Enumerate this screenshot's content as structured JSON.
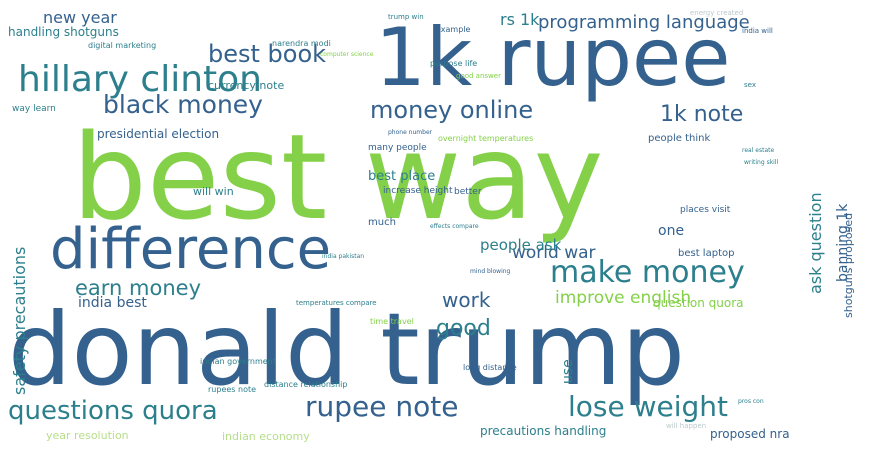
{
  "palette": {
    "dark_blue": "#34618d",
    "teal": "#2c7f8c",
    "green_teal": "#3aa085",
    "light_green": "#84d149",
    "pale_green": "#b6de8a",
    "light_gray": "#bcc9cc"
  },
  "words": [
    {
      "text": "best way",
      "color": "light_green",
      "weight": 1.0
    },
    {
      "text": "donald trump",
      "color": "dark_blue",
      "weight": 0.98
    },
    {
      "text": "1k rupee",
      "color": "dark_blue",
      "weight": 0.82
    },
    {
      "text": "difference",
      "color": "dark_blue",
      "weight": 0.6
    },
    {
      "text": "hillary clinton",
      "color": "teal",
      "weight": 0.45
    },
    {
      "text": "make money",
      "color": "teal",
      "weight": 0.38
    },
    {
      "text": "rupee note",
      "color": "dark_blue",
      "weight": 0.36
    },
    {
      "text": "lose weight",
      "color": "teal",
      "weight": 0.36
    },
    {
      "text": "questions quora",
      "color": "teal",
      "weight": 0.33
    },
    {
      "text": "black money",
      "color": "dark_blue",
      "weight": 0.32
    },
    {
      "text": "best book",
      "color": "dark_blue",
      "weight": 0.3
    },
    {
      "text": "money online",
      "color": "dark_blue",
      "weight": 0.3
    },
    {
      "text": "1k note",
      "color": "dark_blue",
      "weight": 0.28
    },
    {
      "text": "earn money",
      "color": "teal",
      "weight": 0.27
    },
    {
      "text": "good",
      "color": "teal",
      "weight": 0.26
    },
    {
      "text": "work",
      "color": "dark_blue",
      "weight": 0.24
    },
    {
      "text": "programming language",
      "color": "dark_blue",
      "weight": 0.22
    },
    {
      "text": "world war",
      "color": "dark_blue",
      "weight": 0.2
    },
    {
      "text": "improve english",
      "color": "light_green",
      "weight": 0.2
    },
    {
      "text": "ask question",
      "color": "teal",
      "weight": 0.18
    },
    {
      "text": "safety precautions",
      "color": "teal",
      "weight": 0.17
    },
    {
      "text": "new year",
      "color": "dark_blue",
      "weight": 0.17
    },
    {
      "text": "rs 1k",
      "color": "teal",
      "weight": 0.17
    },
    {
      "text": "people ask",
      "color": "teal",
      "weight": 0.16
    },
    {
      "text": "india best",
      "color": "dark_blue",
      "weight": 0.16
    },
    {
      "text": "one",
      "color": "dark_blue",
      "weight": 0.16
    },
    {
      "text": "banning 1k",
      "color": "dark_blue",
      "weight": 0.15
    },
    {
      "text": "best place",
      "color": "teal",
      "weight": 0.15
    },
    {
      "text": "use",
      "color": "teal",
      "weight": 0.15
    },
    {
      "text": "question quora",
      "color": "light_green",
      "weight": 0.14
    },
    {
      "text": "handling shotguns",
      "color": "teal",
      "weight": 0.13
    },
    {
      "text": "shotguns proposed",
      "color": "dark_blue",
      "weight": 0.13
    },
    {
      "text": "precautions handling",
      "color": "teal",
      "weight": 0.12
    },
    {
      "text": "proposed nra",
      "color": "dark_blue",
      "weight": 0.12
    },
    {
      "text": "presidential election",
      "color": "dark_blue",
      "weight": 0.12
    },
    {
      "text": "currency note",
      "color": "teal",
      "weight": 0.11
    },
    {
      "text": "best laptop",
      "color": "dark_blue",
      "weight": 0.11
    },
    {
      "text": "indian economy",
      "color": "pale_green",
      "weight": 0.1
    },
    {
      "text": "year resolution",
      "color": "pale_green",
      "weight": 0.1
    },
    {
      "text": "will win",
      "color": "teal",
      "weight": 0.1
    },
    {
      "text": "people think",
      "color": "dark_blue",
      "weight": 0.1
    },
    {
      "text": "increase height",
      "color": "dark_blue",
      "weight": 0.09
    },
    {
      "text": "places visit",
      "color": "dark_blue",
      "weight": 0.09
    },
    {
      "text": "much",
      "color": "dark_blue",
      "weight": 0.09
    },
    {
      "text": "better",
      "color": "dark_blue",
      "weight": 0.09
    },
    {
      "text": "way learn",
      "color": "teal",
      "weight": 0.08
    },
    {
      "text": "many people",
      "color": "dark_blue",
      "weight": 0.08
    },
    {
      "text": "time travel",
      "color": "light_green",
      "weight": 0.08
    },
    {
      "text": "long distance",
      "color": "dark_blue",
      "weight": 0.08
    },
    {
      "text": "digital marketing",
      "color": "teal",
      "weight": 0.07
    },
    {
      "text": "narendra modi",
      "color": "teal",
      "weight": 0.07
    },
    {
      "text": "example",
      "color": "dark_blue",
      "weight": 0.07
    },
    {
      "text": "purpose life",
      "color": "teal",
      "weight": 0.07
    },
    {
      "text": "good answer",
      "color": "light_green",
      "weight": 0.07
    },
    {
      "text": "indian government",
      "color": "teal",
      "weight": 0.07
    },
    {
      "text": "temperatures compare",
      "color": "teal",
      "weight": 0.07
    },
    {
      "text": "rupees note",
      "color": "teal",
      "weight": 0.07
    },
    {
      "text": "distance relationship",
      "color": "teal",
      "weight": 0.07
    },
    {
      "text": "overnight temperatures",
      "color": "light_green",
      "weight": 0.07
    },
    {
      "text": "computer science",
      "color": "light_green",
      "weight": 0.06
    },
    {
      "text": "real estate",
      "color": "teal",
      "weight": 0.06
    },
    {
      "text": "writing skill",
      "color": "teal",
      "weight": 0.06
    },
    {
      "text": "sex",
      "color": "teal",
      "weight": 0.06
    },
    {
      "text": "phone number",
      "color": "dark_blue",
      "weight": 0.06
    },
    {
      "text": "effects compare",
      "color": "teal",
      "weight": 0.06
    },
    {
      "text": "india pakistan",
      "color": "teal",
      "weight": 0.06
    },
    {
      "text": "mind blowing",
      "color": "dark_blue",
      "weight": 0.06
    },
    {
      "text": "will happen",
      "color": "light_gray",
      "weight": 0.06
    },
    {
      "text": "trump win",
      "color": "teal",
      "weight": 0.06
    },
    {
      "text": "energy created",
      "color": "light_gray",
      "weight": 0.06
    },
    {
      "text": "india will",
      "color": "dark_blue",
      "weight": 0.06
    },
    {
      "text": "pros con",
      "color": "teal",
      "weight": 0.05
    }
  ]
}
